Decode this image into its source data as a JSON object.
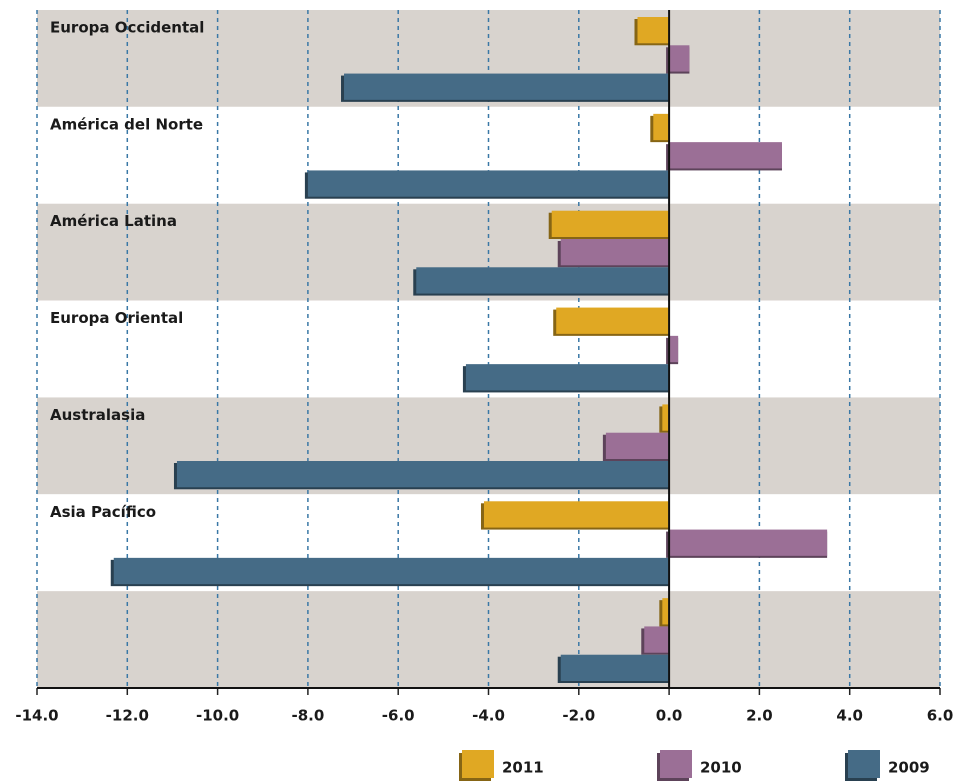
{
  "chart_data": {
    "type": "bar",
    "orientation": "horizontal",
    "categories": [
      "Europa Occidental",
      "América del Norte",
      "América Latina",
      "Europa Oriental",
      "Australasia",
      "Asia Pacífico",
      null
    ],
    "series": [
      {
        "name": "2011",
        "color": "#e0a823",
        "values": [
          -0.7,
          -0.35,
          -2.6,
          -2.5,
          -0.15,
          -4.1,
          -0.15
        ]
      },
      {
        "name": "2010",
        "color": "#9b6f96",
        "values": [
          0.45,
          2.5,
          -2.4,
          0.2,
          -1.4,
          3.5,
          -0.55
        ]
      },
      {
        "name": "2009",
        "color": "#456b86",
        "values": [
          -7.2,
          -8.0,
          -5.6,
          -4.5,
          -10.9,
          -12.3,
          -2.4
        ]
      }
    ],
    "xlim": [
      -14,
      6
    ],
    "xticks": [
      {
        "value": -14,
        "label": "-14.0"
      },
      {
        "value": -12,
        "label": "-12.0"
      },
      {
        "value": -10,
        "label": "-10.0"
      },
      {
        "value": -8,
        "label": "-8.0"
      },
      {
        "value": -6,
        "label": "-6.0"
      },
      {
        "value": -4,
        "label": "-4.0"
      },
      {
        "value": -2,
        "label": "-2.0"
      },
      {
        "value": 0,
        "label": "0.0"
      },
      {
        "value": 2,
        "label": "2.0"
      },
      {
        "value": 4,
        "label": "4.0"
      },
      {
        "value": 6,
        "label": "6.0"
      }
    ],
    "grid": true,
    "legend": "bottom"
  }
}
